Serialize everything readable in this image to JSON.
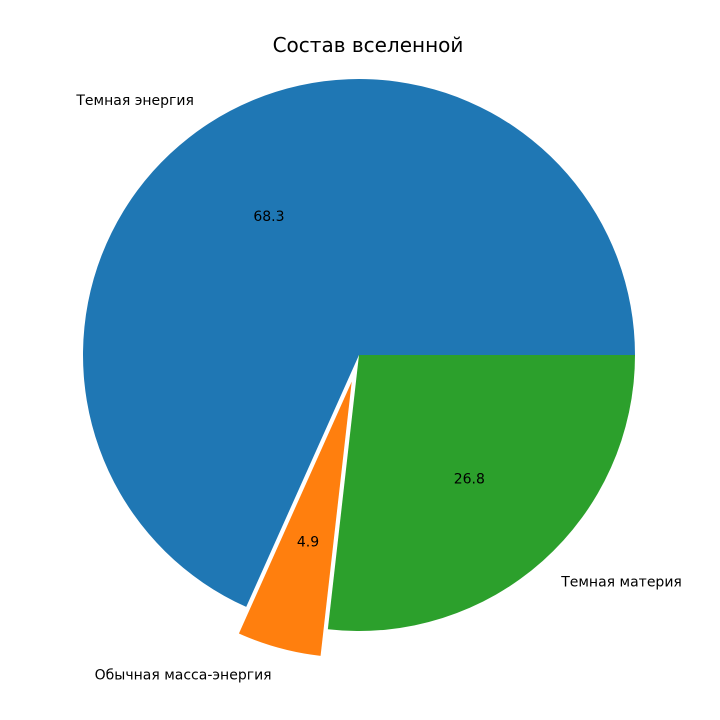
{
  "chart_data": {
    "type": "pie",
    "title": "Состав вселенной",
    "labels": [
      "Темная энергия",
      "Обычная масса-энергия",
      "Темная материя"
    ],
    "values": [
      68.3,
      4.9,
      26.8
    ],
    "value_labels": [
      "68.3",
      "4.9",
      "26.8"
    ],
    "colors": [
      "#1f77b4",
      "#ff7f0e",
      "#2ca02c"
    ],
    "explode": [
      0,
      0.1,
      0
    ],
    "start_angle_deg": 0,
    "direction": "counterclockwise",
    "legend": "none"
  }
}
